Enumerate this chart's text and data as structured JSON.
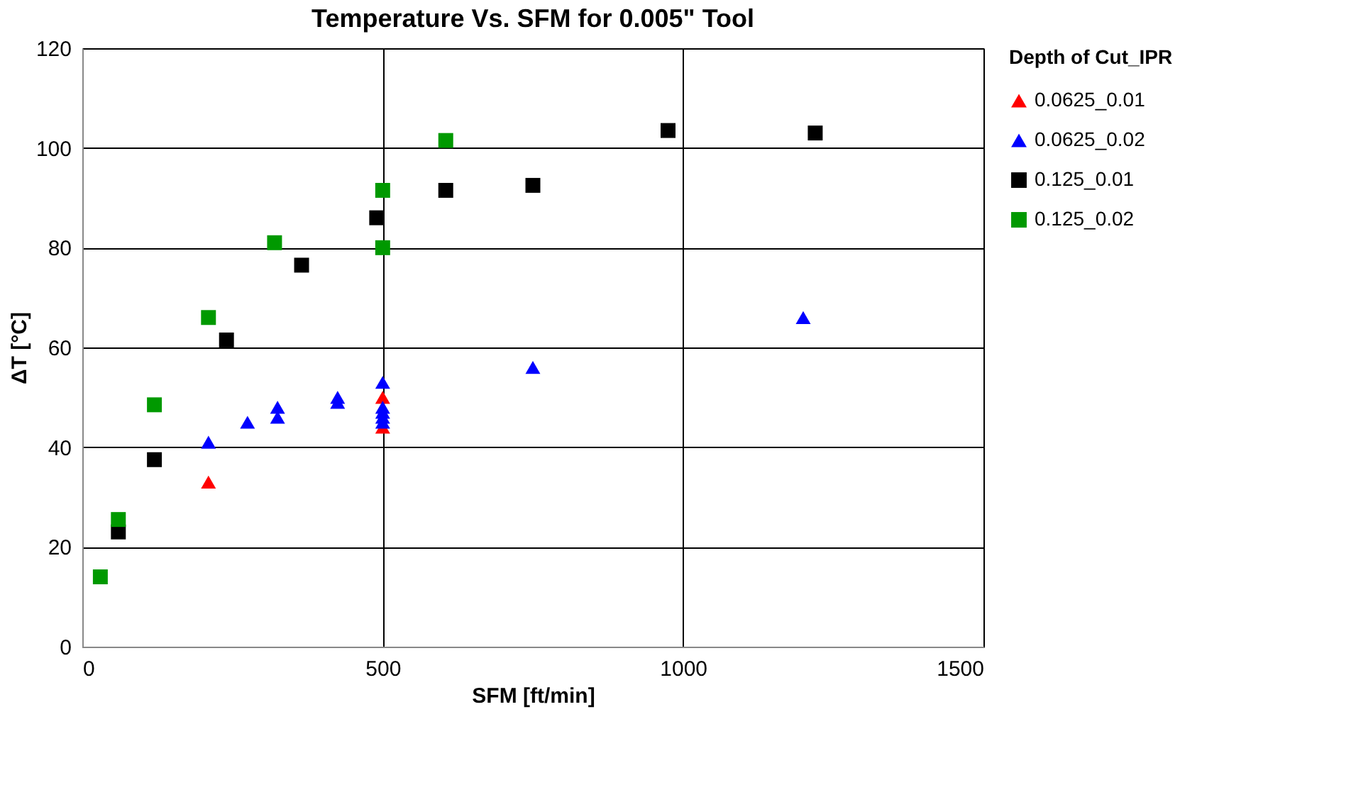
{
  "chart_data": {
    "type": "scatter",
    "title": "Temperature Vs. SFM for 0.005\" Tool",
    "xlabel": "SFM [ft/min]",
    "ylabel": "ΔT [°C]",
    "legend_title": "Depth of Cut_IPR",
    "legend": "right",
    "grid": true,
    "xlim": [
      0,
      1500
    ],
    "xticks": [
      0,
      500,
      1000,
      1500
    ],
    "ylim": [
      0,
      120
    ],
    "yticks": [
      0,
      20,
      40,
      60,
      80,
      100,
      120
    ],
    "series": [
      {
        "name": "0.0625_0.01",
        "color": "#ff0000",
        "marker": "triangle",
        "x": [
          210,
          500,
          500
        ],
        "values": [
          33,
          50,
          44
        ]
      },
      {
        "name": "0.0625_0.02",
        "color": "#0000ff",
        "marker": "triangle",
        "x": [
          210,
          275,
          325,
          325,
          425,
          425,
          500,
          500,
          500,
          500,
          500,
          750,
          1200
        ],
        "values": [
          41,
          45,
          46,
          48,
          49,
          50,
          53,
          45,
          46,
          47,
          48,
          56,
          66
        ]
      },
      {
        "name": "0.125_0.01",
        "color": "#000000",
        "marker": "square",
        "x": [
          60,
          120,
          240,
          365,
          490,
          605,
          750,
          975,
          1220
        ],
        "values": [
          23,
          37.5,
          61.5,
          76.5,
          86,
          91.5,
          92.5,
          103.5,
          103
        ]
      },
      {
        "name": "0.125_0.02",
        "color": "#009900",
        "marker": "square",
        "x": [
          30,
          60,
          120,
          210,
          320,
          500,
          500,
          605
        ],
        "values": [
          14,
          25.5,
          48.5,
          66,
          81,
          91.5,
          80,
          101.5
        ]
      }
    ]
  }
}
